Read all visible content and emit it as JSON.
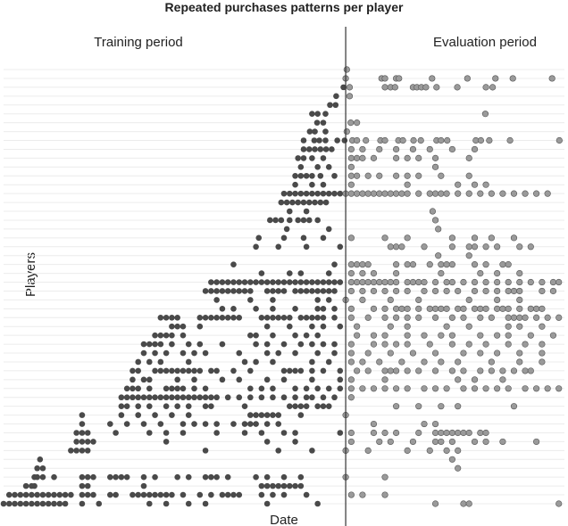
{
  "chart_data": {
    "type": "dotrows",
    "title": "Repeated purchases patterns per player",
    "x_label": "Date",
    "y_label": "Players",
    "left_period": "Training period",
    "right_period": "Evaluation period",
    "split": 61,
    "xlim": [
      0,
      100
    ],
    "train_color": "#4a4a4a",
    "eval_color": "#9a9a9a",
    "grid": true,
    "rows": [
      [
        61.2
      ],
      [
        61,
        67.4,
        68,
        70,
        70.5,
        76.4,
        82.7,
        87.7,
        90.8,
        97.8
      ],
      [
        60.6,
        61.7,
        68,
        69,
        69.8,
        73,
        73.7,
        74.5,
        75.3,
        77.2,
        80.9,
        86,
        87.2
      ],
      [
        59.3,
        61.7
      ],
      [
        58.2,
        59.2
      ],
      [
        55,
        56,
        57.4,
        85.9
      ],
      [
        55.9,
        57,
        61.9,
        63
      ],
      [
        54.6,
        55.5,
        57.4,
        61.2
      ],
      [
        53.5,
        55.4,
        56.3,
        57.4,
        59.5,
        60.8,
        62.2,
        63,
        64.6,
        67.2,
        68,
        70.4,
        71.2,
        73.1,
        74.4,
        77.2,
        78,
        79.1,
        84.2,
        85.1,
        86.6,
        90.3,
        99.1
      ],
      [
        53.5,
        54.5,
        55.5,
        56.5,
        57.5,
        58.5,
        62,
        64,
        67,
        70,
        73,
        76,
        80,
        84
      ],
      [
        52.5,
        53.5,
        55,
        57,
        62,
        63,
        64,
        66,
        70,
        72,
        74,
        77,
        83
      ],
      [
        53,
        56,
        58,
        62,
        77
      ],
      [
        52,
        53,
        54,
        55,
        56.5,
        59,
        62,
        63,
        65,
        67,
        70,
        72,
        74,
        78,
        83
      ],
      [
        52,
        55,
        57,
        62,
        72,
        81,
        84,
        86
      ],
      [
        50,
        51,
        52,
        53,
        54,
        55,
        56,
        57,
        58,
        59,
        60,
        61,
        62,
        63,
        64,
        65,
        66,
        67,
        68,
        69,
        70,
        71,
        72,
        74,
        76,
        77,
        78,
        79,
        81,
        83,
        85,
        87,
        89,
        91,
        93,
        95,
        97
      ],
      [
        49.5,
        50.5,
        51.5,
        52.5,
        53.5,
        54.5,
        55.5,
        56.5,
        57.5
      ],
      [
        51,
        54,
        76.5
      ],
      [
        47.5,
        48.5,
        49.5,
        51,
        52.5,
        53.5,
        54.5,
        56,
        77
      ],
      [
        50.5,
        58,
        77.5
      ],
      [
        45.5,
        50,
        53.5,
        57,
        62,
        68,
        72,
        80,
        84,
        87,
        91
      ],
      [
        45,
        49,
        54,
        60,
        69,
        70,
        71,
        75,
        80,
        83,
        84,
        86,
        88,
        92,
        94
      ],
      [
        77.5,
        83
      ],
      [
        41,
        59,
        62,
        63,
        64,
        65,
        70,
        72,
        73,
        76,
        78,
        79,
        80,
        84,
        86,
        89,
        90
      ],
      [
        46,
        51,
        53,
        58,
        62,
        64,
        66,
        70,
        78,
        85,
        88,
        92
      ],
      [
        37,
        38,
        39,
        40,
        41,
        42,
        43,
        44,
        45,
        46,
        47,
        48,
        49,
        50,
        51,
        52,
        53,
        54,
        55,
        56,
        57,
        58,
        59,
        60,
        62,
        63,
        64,
        65,
        66,
        67,
        68,
        69,
        70,
        72,
        73,
        74,
        75,
        77,
        79,
        80,
        82,
        84,
        86,
        88,
        90,
        92,
        94,
        96,
        98,
        99
      ],
      [
        36,
        37,
        38,
        39,
        40,
        41,
        42,
        43,
        44,
        47,
        48,
        49,
        50,
        52,
        53,
        54,
        55,
        56,
        57,
        58,
        59,
        62,
        64,
        66,
        68,
        70,
        72,
        75,
        77,
        79,
        81,
        84,
        86,
        88,
        90,
        91,
        92,
        96,
        98
      ],
      [
        38,
        44,
        48,
        56,
        58,
        61,
        64,
        69,
        74,
        83,
        88,
        92
      ],
      [
        39,
        41,
        45,
        48,
        52,
        56,
        57,
        59,
        62,
        66,
        68,
        70,
        71,
        72,
        74,
        76,
        77,
        78,
        79,
        81,
        82,
        84,
        85,
        86,
        88,
        89,
        90,
        92,
        94,
        95,
        96
      ],
      [
        28,
        29,
        30,
        31,
        35,
        36,
        37,
        38,
        39,
        40,
        41,
        42,
        46,
        47,
        48,
        49,
        50,
        51,
        53,
        54,
        55,
        56,
        57,
        59,
        62,
        65,
        68,
        70,
        72,
        74,
        77,
        80,
        82,
        85,
        87,
        90,
        91,
        92,
        93,
        95,
        97,
        99
      ],
      [
        30,
        31,
        32,
        35,
        47,
        51,
        55,
        57,
        60,
        63,
        69,
        72,
        79,
        83,
        90,
        92,
        96
      ],
      [
        27,
        28,
        29,
        30,
        32,
        44,
        45,
        48,
        52,
        54,
        56,
        63,
        66,
        68,
        72,
        75,
        78,
        80,
        85,
        88,
        90,
        94,
        98
      ],
      [
        25,
        26,
        27,
        28,
        30,
        33,
        35,
        39,
        45,
        47,
        50,
        53,
        55,
        57,
        59,
        62,
        66,
        68,
        70,
        72,
        76,
        80,
        83,
        86,
        90,
        93,
        96
      ],
      [
        25,
        27,
        29,
        32,
        34,
        36,
        42,
        47,
        49,
        52,
        56,
        59,
        62,
        65,
        69,
        73,
        77,
        82,
        85,
        88,
        92,
        96
      ],
      [
        24,
        26,
        28,
        33,
        43,
        45,
        48,
        55,
        58,
        62,
        64,
        67,
        71,
        75,
        78,
        81,
        87,
        92,
        96
      ],
      [
        23,
        24,
        27,
        28,
        29,
        30,
        31,
        32,
        33,
        34,
        35,
        37,
        38,
        41,
        44,
        50,
        51,
        52,
        53,
        55,
        57,
        60,
        63,
        65,
        68,
        69,
        70,
        72,
        74,
        77,
        80,
        82,
        85,
        87,
        89,
        91,
        93,
        94
      ],
      [
        23,
        25,
        26,
        31,
        34,
        39,
        42,
        47,
        50,
        55,
        60,
        62,
        68,
        81,
        84,
        89
      ],
      [
        22,
        23,
        24,
        26,
        29,
        30,
        31,
        32,
        34,
        36,
        44,
        46,
        48,
        52,
        54,
        56,
        58,
        60,
        62,
        64,
        66,
        68,
        70,
        72,
        75,
        77,
        79,
        82,
        84,
        86,
        88,
        90,
        93,
        95,
        97,
        99
      ],
      [
        21,
        22,
        23,
        24,
        25,
        26,
        27,
        28,
        29,
        30,
        31,
        32,
        33,
        34,
        35,
        36,
        37,
        38,
        40,
        42,
        44,
        46,
        48,
        50,
        52,
        54,
        55,
        57,
        59,
        62
      ],
      [
        21,
        22,
        24,
        26,
        29,
        31,
        33,
        36,
        37,
        43,
        51,
        52,
        53,
        54,
        56,
        57,
        58,
        70,
        74,
        78,
        81,
        91
      ],
      [
        14,
        21,
        24,
        27,
        30,
        33,
        44,
        45,
        46,
        47,
        48,
        49,
        53,
        61
      ],
      [
        14,
        19,
        22,
        25,
        28,
        32,
        34,
        36,
        38,
        41,
        43,
        44,
        45,
        47,
        49,
        66,
        75,
        77
      ],
      [
        13,
        14,
        15,
        20,
        26,
        29,
        32,
        38,
        43,
        46,
        50,
        52,
        60,
        62,
        66,
        68,
        70,
        74,
        77,
        78,
        79,
        80,
        81,
        82,
        83,
        85,
        86
      ],
      [
        13,
        14,
        15,
        16,
        29,
        47,
        52,
        62,
        67,
        69,
        73,
        77,
        78,
        80,
        84,
        86,
        89,
        95
      ],
      [
        12,
        13,
        14,
        15,
        36,
        49,
        55,
        61,
        65,
        72,
        76,
        79,
        81
      ],
      [
        6.5,
        80
      ],
      [
        6,
        7,
        81
      ],
      [
        5.5,
        6,
        7,
        9,
        14,
        15,
        16,
        19,
        20,
        21,
        22,
        25,
        27,
        31,
        33,
        36,
        37,
        38,
        40,
        45,
        47,
        50,
        53,
        61,
        68
      ],
      [
        4,
        5,
        5.5,
        14,
        15,
        25,
        46,
        47,
        48,
        49,
        50,
        51,
        52,
        53
      ],
      [
        1,
        2,
        3,
        4,
        5,
        6,
        7,
        8,
        9,
        10,
        11,
        12,
        14,
        15,
        16,
        19,
        20,
        23,
        24,
        25,
        26,
        27,
        28,
        29,
        30,
        32,
        35,
        37,
        39,
        40,
        41,
        42,
        46,
        48,
        50,
        54,
        62,
        64,
        68
      ],
      [
        0,
        1,
        2,
        3,
        4,
        5,
        6,
        7,
        8,
        9,
        10,
        11,
        14,
        17,
        26,
        29,
        33,
        36,
        47,
        56,
        77,
        82,
        83,
        99
      ]
    ]
  }
}
